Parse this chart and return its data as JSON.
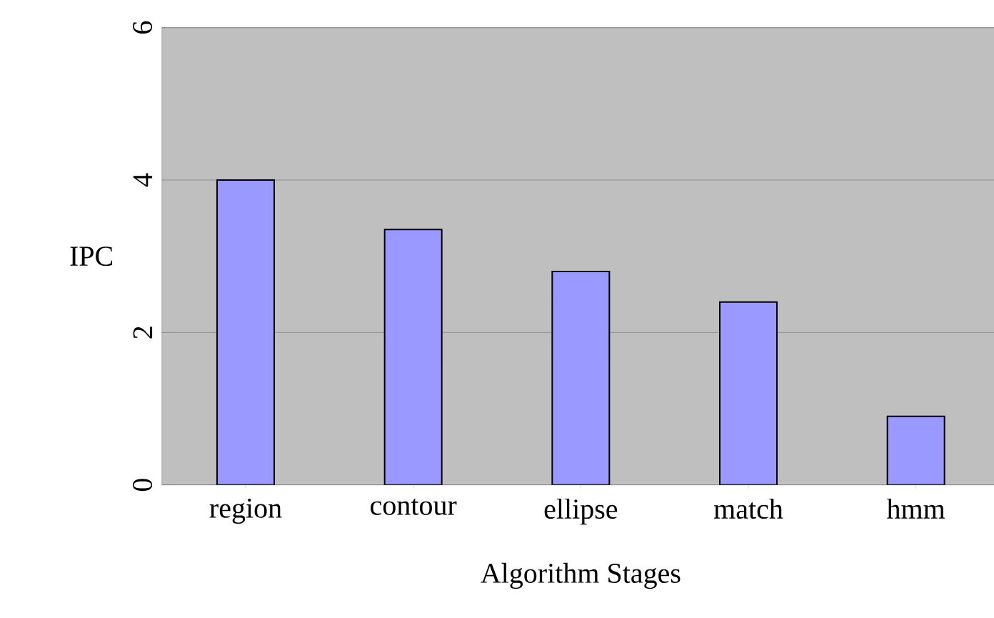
{
  "chart_data": {
    "type": "bar",
    "xlabel": "Algorithm Stages",
    "ylabel": "IPC",
    "categories": [
      "region",
      "contour",
      "ellipse",
      "match",
      "hmm"
    ],
    "values": [
      4.0,
      3.35,
      2.8,
      2.4,
      0.9
    ],
    "color": "#9999ff",
    "ylim": [
      0,
      6
    ],
    "yticks": [
      0,
      2,
      4,
      6
    ],
    "grid": "y"
  }
}
